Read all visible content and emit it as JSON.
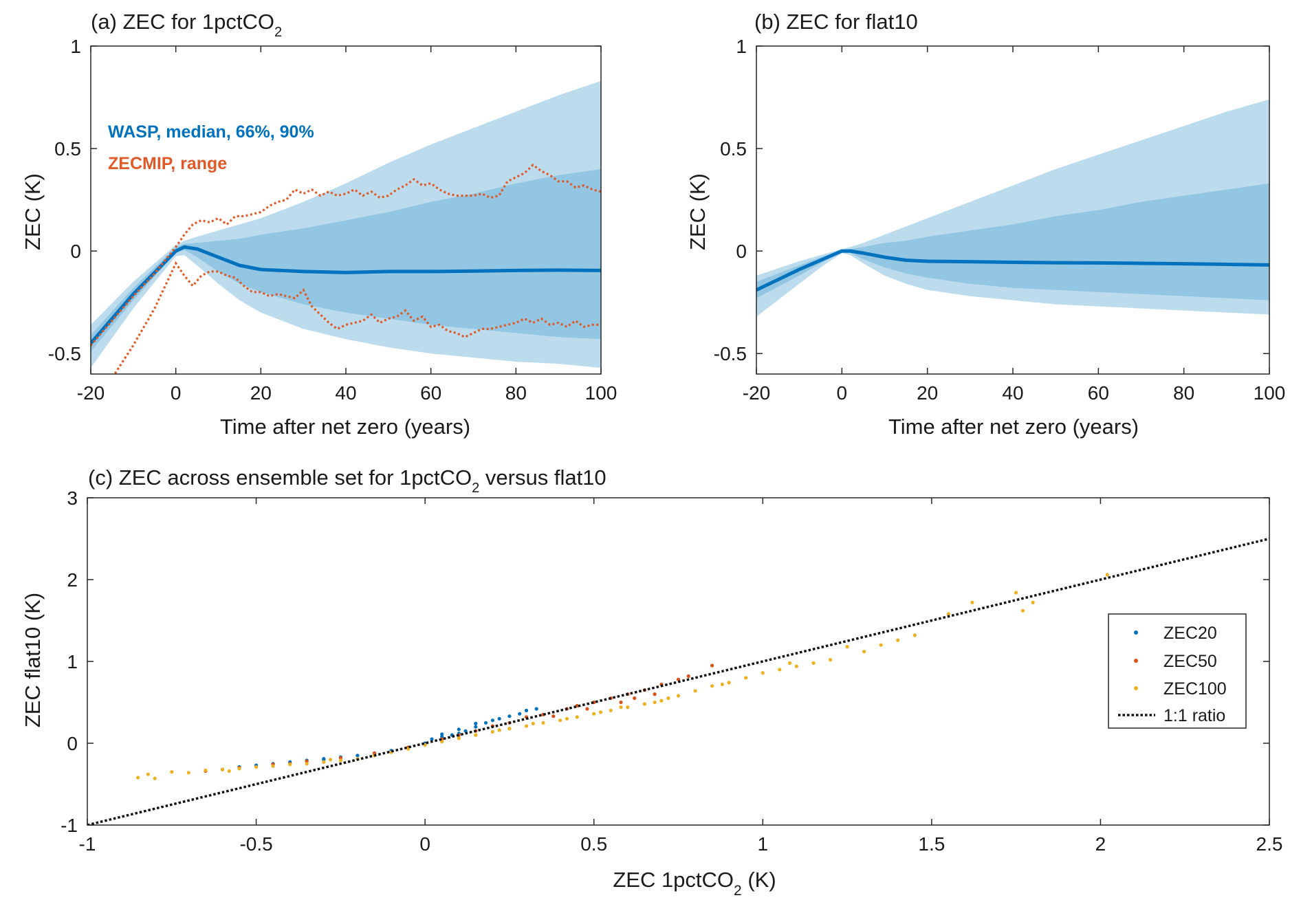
{
  "colors": {
    "wasp": "#0072BD",
    "band90": "#bcdcee",
    "band66": "#92c6e3",
    "zecmip": "#E05A28",
    "zec20": "#0072BD",
    "zec50": "#D95319",
    "zec100": "#EDB120",
    "ratio": "#111111",
    "axis": "#262626"
  },
  "chart_data": [
    {
      "id": "a",
      "type": "area",
      "title_prefix": "(a) ZEC for 1pctCO",
      "title_sub": "2",
      "title_suffix": "",
      "xlabel": "Time after net zero (years)",
      "ylabel": "ZEC (K)",
      "xlim": [
        -20,
        100
      ],
      "ylim": [
        -0.6,
        1
      ],
      "xticks": [
        "-20",
        "0",
        "20",
        "40",
        "60",
        "80",
        "100"
      ],
      "yticks": [
        "-0.5",
        "0",
        "0.5",
        "1"
      ],
      "grid": false,
      "annotations": [
        "WASP, median, 66%, 90%",
        "ZECMIP, range"
      ],
      "x": [
        -20,
        -10,
        0,
        2,
        5,
        10,
        15,
        20,
        30,
        40,
        50,
        60,
        70,
        80,
        90,
        100
      ],
      "median": [
        -0.45,
        -0.21,
        0.0,
        0.02,
        0.01,
        -0.03,
        -0.07,
        -0.09,
        -0.1,
        -0.105,
        -0.1,
        -0.1,
        -0.098,
        -0.095,
        -0.093,
        -0.095
      ],
      "band66_upper": [
        -0.41,
        -0.18,
        0.02,
        0.035,
        0.04,
        0.05,
        0.06,
        0.08,
        0.11,
        0.15,
        0.19,
        0.24,
        0.28,
        0.33,
        0.37,
        0.4
      ],
      "band66_lower": [
        -0.49,
        -0.24,
        -0.01,
        0.005,
        -0.03,
        -0.1,
        -0.16,
        -0.2,
        -0.26,
        -0.3,
        -0.33,
        -0.36,
        -0.38,
        -0.4,
        -0.42,
        -0.43
      ],
      "band90_upper": [
        -0.36,
        -0.15,
        0.03,
        0.05,
        0.07,
        0.1,
        0.13,
        0.16,
        0.24,
        0.33,
        0.43,
        0.52,
        0.6,
        0.68,
        0.76,
        0.83
      ],
      "band90_lower": [
        -0.57,
        -0.28,
        -0.025,
        -0.02,
        -0.07,
        -0.16,
        -0.24,
        -0.3,
        -0.38,
        -0.43,
        -0.47,
        -0.5,
        -0.52,
        -0.54,
        -0.55,
        -0.57
      ],
      "zecmip_upper": {
        "x": [
          -20,
          -15,
          -10,
          -5,
          0,
          2,
          4,
          6,
          8,
          10,
          12,
          14,
          16,
          18,
          20,
          22,
          24,
          26,
          28,
          30,
          32,
          34,
          36,
          38,
          40,
          42,
          44,
          46,
          48,
          50,
          52,
          54,
          56,
          58,
          60,
          62,
          64,
          66,
          68,
          70,
          72,
          74,
          76,
          78,
          80,
          82,
          84,
          86,
          88,
          90,
          92,
          94,
          96,
          98,
          100
        ],
        "y": [
          -0.46,
          -0.34,
          -0.22,
          -0.11,
          0.02,
          0.08,
          0.13,
          0.15,
          0.14,
          0.16,
          0.13,
          0.17,
          0.17,
          0.18,
          0.19,
          0.22,
          0.24,
          0.25,
          0.3,
          0.28,
          0.3,
          0.27,
          0.29,
          0.27,
          0.28,
          0.3,
          0.27,
          0.29,
          0.26,
          0.27,
          0.3,
          0.32,
          0.35,
          0.32,
          0.33,
          0.3,
          0.28,
          0.27,
          0.27,
          0.27,
          0.28,
          0.26,
          0.27,
          0.34,
          0.36,
          0.38,
          0.42,
          0.39,
          0.37,
          0.34,
          0.34,
          0.31,
          0.32,
          0.3,
          0.29
        ]
      },
      "zecmip_lower": {
        "x": [
          -20,
          -15,
          -10,
          -5,
          0,
          2,
          4,
          6,
          8,
          10,
          12,
          14,
          16,
          18,
          20,
          22,
          24,
          26,
          28,
          30,
          32,
          34,
          36,
          38,
          40,
          42,
          44,
          46,
          48,
          50,
          52,
          54,
          56,
          58,
          60,
          62,
          64,
          66,
          68,
          70,
          72,
          74,
          76,
          78,
          80,
          82,
          84,
          86,
          88,
          90,
          92,
          94,
          96,
          98,
          100
        ],
        "y": [
          -0.78,
          -0.62,
          -0.46,
          -0.28,
          -0.06,
          -0.12,
          -0.17,
          -0.12,
          -0.1,
          -0.1,
          -0.12,
          -0.13,
          -0.17,
          -0.2,
          -0.2,
          -0.22,
          -0.21,
          -0.22,
          -0.23,
          -0.19,
          -0.27,
          -0.31,
          -0.35,
          -0.38,
          -0.36,
          -0.35,
          -0.34,
          -0.31,
          -0.35,
          -0.33,
          -0.32,
          -0.29,
          -0.34,
          -0.32,
          -0.37,
          -0.36,
          -0.39,
          -0.4,
          -0.42,
          -0.4,
          -0.38,
          -0.38,
          -0.37,
          -0.36,
          -0.35,
          -0.33,
          -0.35,
          -0.33,
          -0.36,
          -0.35,
          -0.37,
          -0.34,
          -0.37,
          -0.36,
          -0.36
        ]
      }
    },
    {
      "id": "b",
      "type": "area",
      "title_prefix": "(b) ZEC for flat10",
      "title_sub": "",
      "title_suffix": "",
      "xlabel": "Time after net zero (years)",
      "ylabel": "ZEC (K)",
      "xlim": [
        -20,
        100
      ],
      "ylim": [
        -0.6,
        1
      ],
      "xticks": [
        "-20",
        "0",
        "20",
        "40",
        "60",
        "80",
        "100"
      ],
      "yticks": [
        "-0.5",
        "0",
        "0.5",
        "1"
      ],
      "grid": false,
      "x": [
        -20,
        -10,
        -5,
        0,
        2,
        5,
        10,
        15,
        20,
        30,
        40,
        50,
        60,
        70,
        80,
        90,
        100
      ],
      "median": [
        -0.19,
        -0.09,
        -0.045,
        0.0,
        0.0,
        -0.01,
        -0.03,
        -0.045,
        -0.05,
        -0.052,
        -0.055,
        -0.057,
        -0.058,
        -0.06,
        -0.062,
        -0.065,
        -0.068
      ],
      "band66_upper": [
        -0.15,
        -0.07,
        -0.03,
        0.005,
        0.01,
        0.02,
        0.04,
        0.05,
        0.07,
        0.1,
        0.13,
        0.17,
        0.2,
        0.24,
        0.27,
        0.3,
        0.33
      ],
      "band66_lower": [
        -0.23,
        -0.12,
        -0.06,
        -0.005,
        -0.01,
        -0.04,
        -0.08,
        -0.11,
        -0.13,
        -0.16,
        -0.18,
        -0.19,
        -0.2,
        -0.21,
        -0.22,
        -0.23,
        -0.24
      ],
      "band90_upper": [
        -0.12,
        -0.05,
        -0.02,
        0.01,
        0.02,
        0.04,
        0.08,
        0.12,
        0.16,
        0.24,
        0.32,
        0.4,
        0.47,
        0.54,
        0.61,
        0.68,
        0.74
      ],
      "band90_lower": [
        -0.32,
        -0.16,
        -0.08,
        -0.01,
        -0.02,
        -0.06,
        -0.12,
        -0.16,
        -0.19,
        -0.22,
        -0.24,
        -0.26,
        -0.27,
        -0.28,
        -0.29,
        -0.3,
        -0.31
      ]
    },
    {
      "id": "c",
      "type": "scatter",
      "title_prefix": "(c) ZEC across ensemble set for 1pctCO",
      "title_sub": "2",
      "title_suffix": " versus flat10",
      "xlabel_prefix": "ZEC 1pctCO",
      "xlabel_sub": "2",
      "xlabel_suffix": " (K)",
      "ylabel": "ZEC flat10 (K)",
      "xlim": [
        -1,
        2.5
      ],
      "ylim": [
        -1,
        3
      ],
      "xticks": [
        "-1",
        "-0.5",
        "0",
        "0.5",
        "1",
        "1.5",
        "2",
        "2.5"
      ],
      "yticks": [
        "-1",
        "0",
        "1",
        "2",
        "3"
      ],
      "grid": false,
      "legend_position": "right",
      "series": [
        {
          "name": "ZEC20",
          "points": [
            [
              -0.55,
              -0.29
            ],
            [
              -0.5,
              -0.27
            ],
            [
              -0.45,
              -0.25
            ],
            [
              -0.4,
              -0.23
            ],
            [
              -0.35,
              -0.21
            ],
            [
              -0.3,
              -0.19
            ],
            [
              -0.25,
              -0.17
            ],
            [
              -0.2,
              -0.15
            ],
            [
              -0.15,
              -0.12
            ],
            [
              -0.1,
              -0.09
            ],
            [
              -0.05,
              -0.06
            ],
            [
              0.0,
              0.0
            ],
            [
              0.02,
              0.05
            ],
            [
              0.05,
              0.08
            ],
            [
              0.08,
              0.1
            ],
            [
              0.1,
              0.12
            ],
            [
              0.12,
              0.15
            ],
            [
              0.15,
              0.2
            ],
            [
              0.18,
              0.25
            ],
            [
              0.2,
              0.28
            ],
            [
              0.22,
              0.3
            ],
            [
              0.25,
              0.33
            ],
            [
              0.28,
              0.36
            ],
            [
              0.3,
              0.4
            ],
            [
              0.33,
              0.42
            ],
            [
              0.15,
              0.24
            ],
            [
              0.1,
              0.17
            ],
            [
              0.05,
              0.11
            ],
            [
              -0.3,
              -0.2
            ],
            [
              -0.6,
              -0.32
            ]
          ]
        },
        {
          "name": "ZEC50",
          "points": [
            [
              -0.65,
              -0.34
            ],
            [
              -0.55,
              -0.3
            ],
            [
              -0.45,
              -0.26
            ],
            [
              -0.35,
              -0.22
            ],
            [
              -0.25,
              -0.18
            ],
            [
              -0.15,
              -0.12
            ],
            [
              -0.05,
              -0.05
            ],
            [
              0.05,
              0.05
            ],
            [
              0.15,
              0.15
            ],
            [
              0.25,
              0.25
            ],
            [
              0.35,
              0.35
            ],
            [
              0.42,
              0.42
            ],
            [
              0.5,
              0.5
            ],
            [
              0.55,
              0.55
            ],
            [
              0.6,
              0.6
            ],
            [
              0.65,
              0.65
            ],
            [
              0.7,
              0.72
            ],
            [
              0.75,
              0.78
            ],
            [
              0.45,
              0.46
            ],
            [
              0.3,
              0.32
            ],
            [
              0.2,
              0.21
            ],
            [
              0.38,
              0.33
            ],
            [
              0.48,
              0.42
            ],
            [
              0.58,
              0.5
            ],
            [
              0.68,
              0.6
            ],
            [
              0.85,
              0.95
            ],
            [
              -0.4,
              -0.25
            ],
            [
              0.1,
              0.1
            ],
            [
              0.62,
              0.55
            ],
            [
              0.78,
              0.82
            ]
          ]
        },
        {
          "name": "ZEC100",
          "points": [
            [
              -0.85,
              -0.42
            ],
            [
              -0.8,
              -0.43
            ],
            [
              -0.82,
              -0.38
            ],
            [
              -0.75,
              -0.35
            ],
            [
              -0.7,
              -0.36
            ],
            [
              -0.65,
              -0.33
            ],
            [
              -0.6,
              -0.32
            ],
            [
              -0.55,
              -0.31
            ],
            [
              -0.5,
              -0.29
            ],
            [
              -0.45,
              -0.28
            ],
            [
              -0.4,
              -0.26
            ],
            [
              -0.35,
              -0.25
            ],
            [
              -0.3,
              -0.23
            ],
            [
              -0.25,
              -0.21
            ],
            [
              -0.2,
              -0.19
            ],
            [
              -0.15,
              -0.15
            ],
            [
              -0.1,
              -0.11
            ],
            [
              -0.05,
              -0.07
            ],
            [
              0.0,
              -0.02
            ],
            [
              0.05,
              0.02
            ],
            [
              0.1,
              0.06
            ],
            [
              0.15,
              0.1
            ],
            [
              0.2,
              0.14
            ],
            [
              0.25,
              0.18
            ],
            [
              0.3,
              0.21
            ],
            [
              0.35,
              0.25
            ],
            [
              0.4,
              0.28
            ],
            [
              0.45,
              0.32
            ],
            [
              0.5,
              0.36
            ],
            [
              0.55,
              0.4
            ],
            [
              0.6,
              0.44
            ],
            [
              0.65,
              0.48
            ],
            [
              0.7,
              0.52
            ],
            [
              0.75,
              0.58
            ],
            [
              0.8,
              0.64
            ],
            [
              0.85,
              0.7
            ],
            [
              0.9,
              0.74
            ],
            [
              0.95,
              0.8
            ],
            [
              1.0,
              0.86
            ],
            [
              1.05,
              0.9
            ],
            [
              1.1,
              0.94
            ],
            [
              1.15,
              0.98
            ],
            [
              1.2,
              1.02
            ],
            [
              1.25,
              1.18
            ],
            [
              1.3,
              1.12
            ],
            [
              1.35,
              1.2
            ],
            [
              1.4,
              1.26
            ],
            [
              1.45,
              1.32
            ],
            [
              1.55,
              1.58
            ],
            [
              1.62,
              1.72
            ],
            [
              1.75,
              1.84
            ],
            [
              1.77,
              1.62
            ],
            [
              1.8,
              1.72
            ],
            [
              2.02,
              2.06
            ],
            [
              -0.28,
              -0.2
            ],
            [
              0.32,
              0.24
            ],
            [
              0.42,
              0.3
            ],
            [
              0.58,
              0.44
            ],
            [
              0.72,
              0.55
            ],
            [
              0.88,
              0.72
            ],
            [
              1.08,
              0.98
            ],
            [
              0.22,
              0.16
            ],
            [
              -0.58,
              -0.34
            ],
            [
              0.52,
              0.38
            ],
            [
              0.68,
              0.5
            ]
          ]
        }
      ],
      "ratio_line": {
        "name": "1:1 ratio",
        "x": [
          -1,
          2.5
        ],
        "y": [
          -1,
          2.5
        ]
      }
    }
  ]
}
